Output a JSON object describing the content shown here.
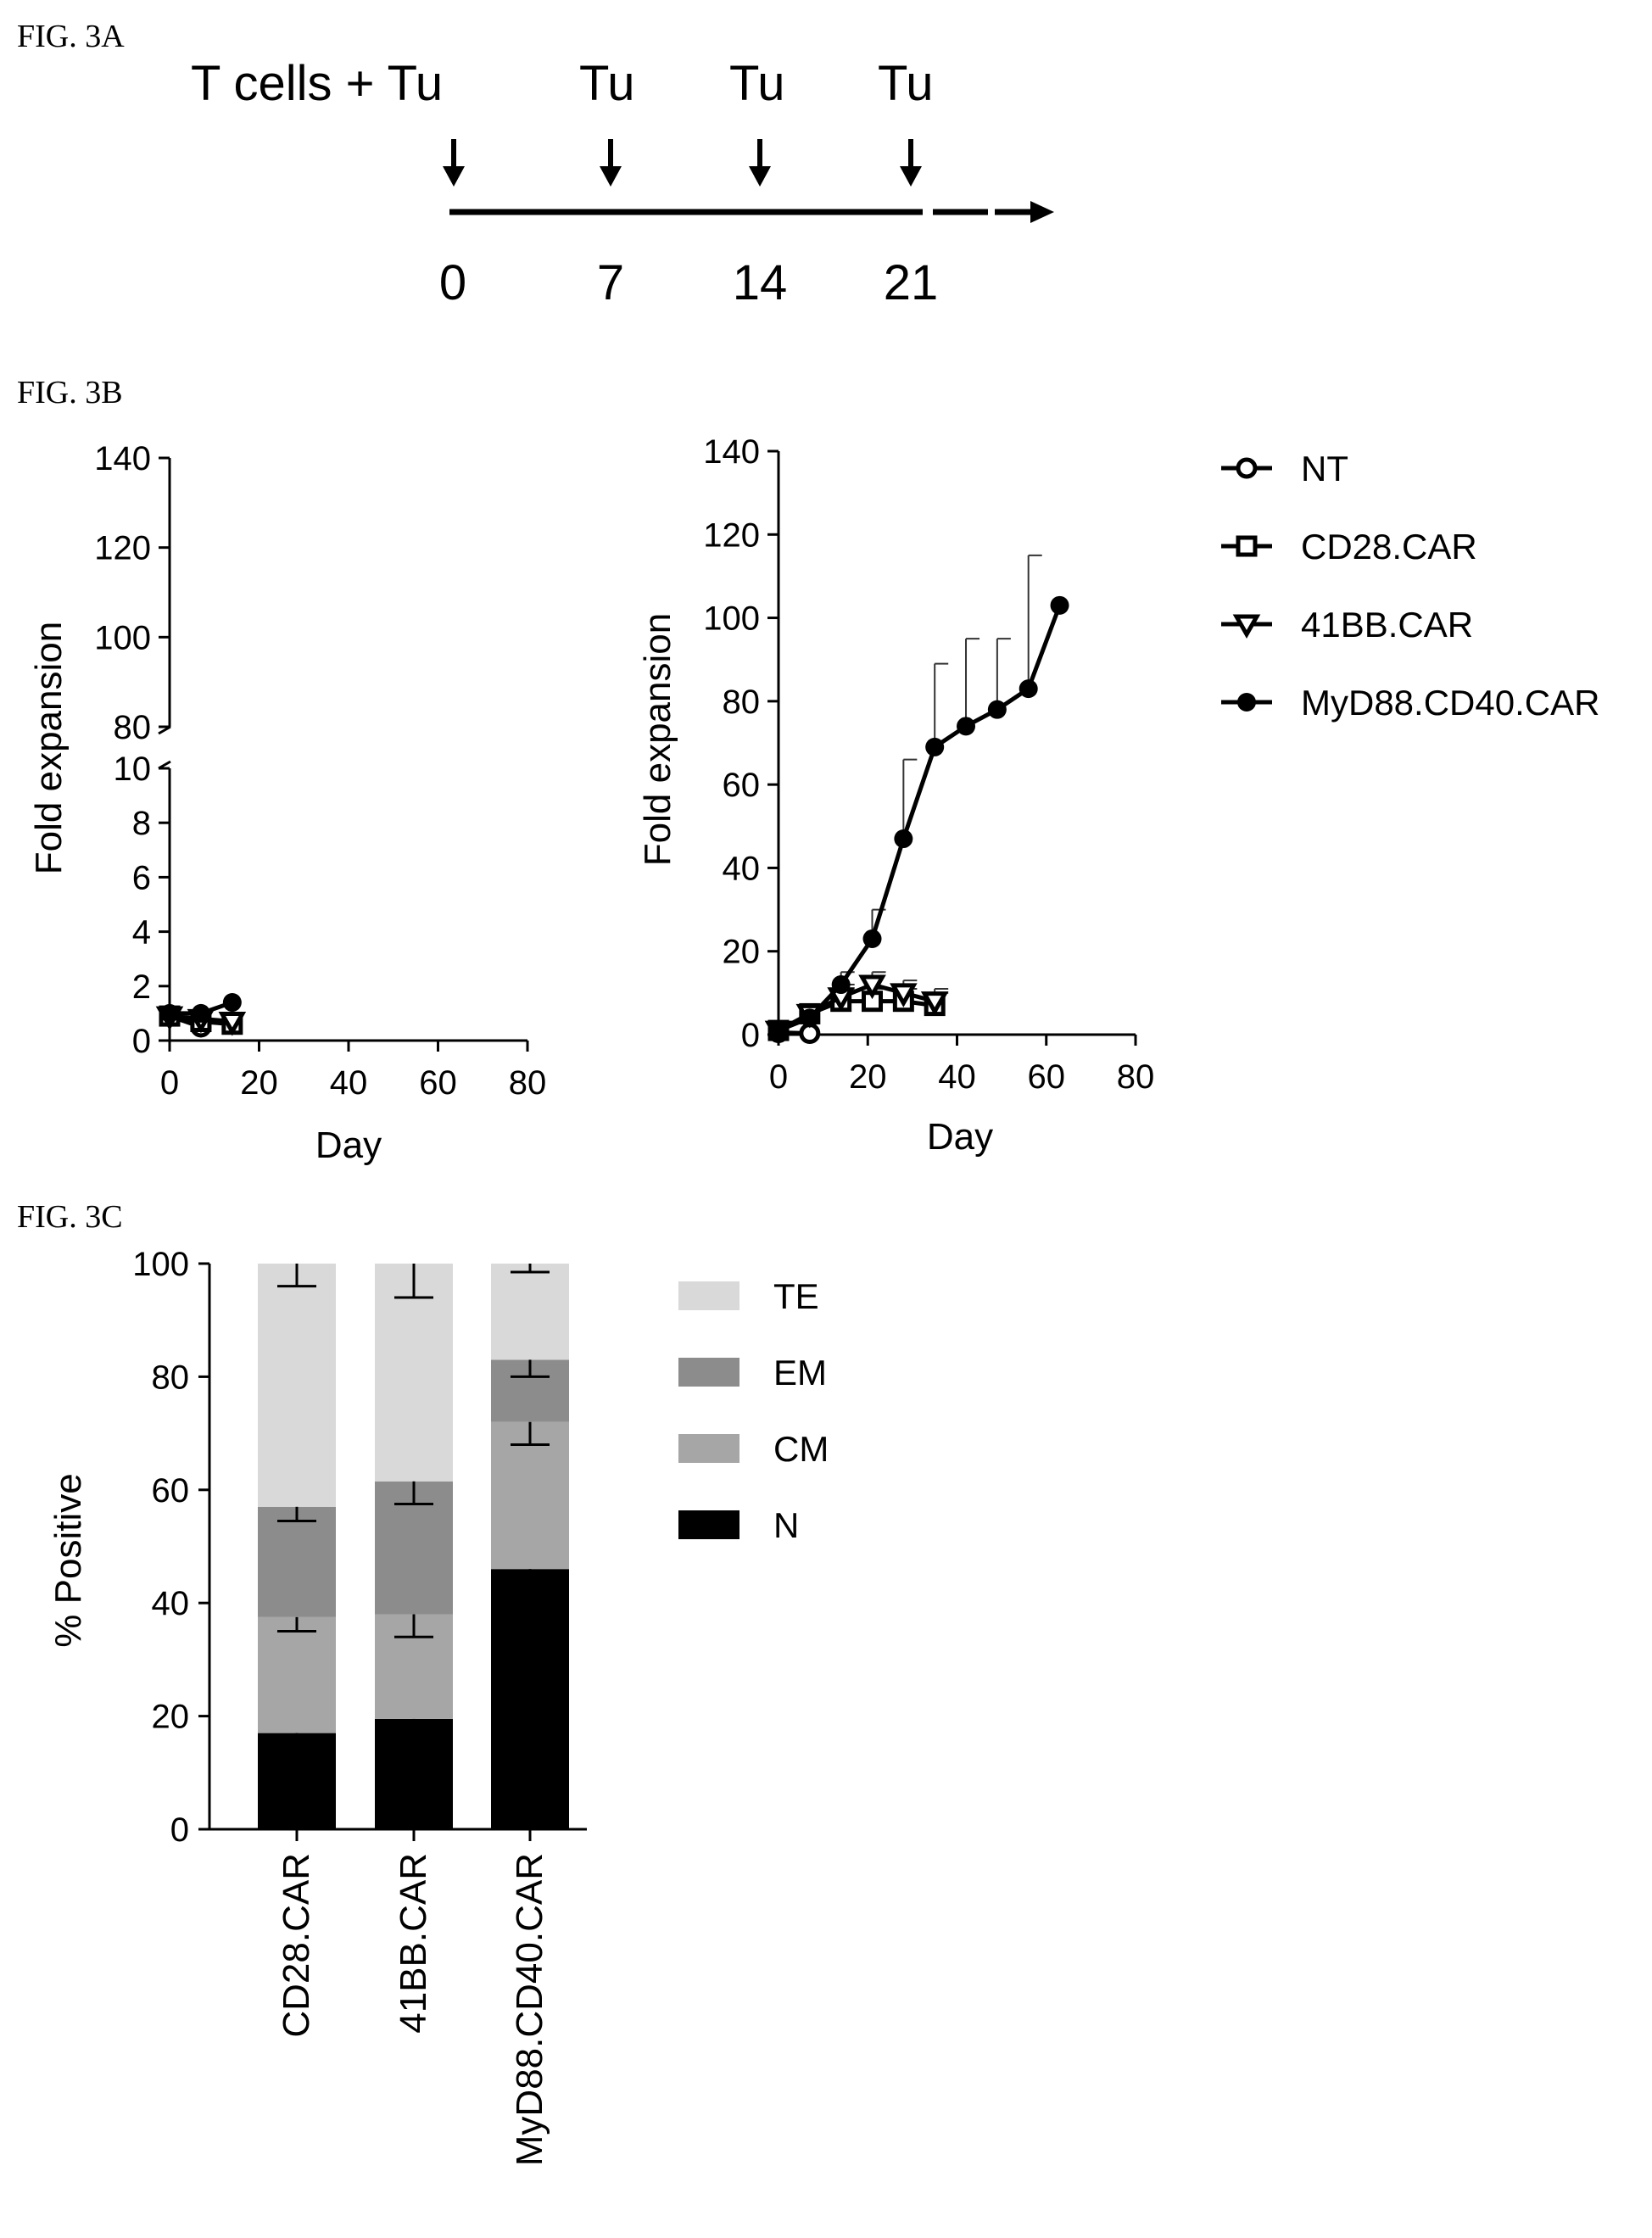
{
  "figures": {
    "a": {
      "label": "FIG. 3A",
      "first_event": "T cells + Tu",
      "event": "Tu",
      "days": [
        "0",
        "7",
        "14",
        "21"
      ]
    },
    "b": {
      "label": "FIG. 3B"
    },
    "c": {
      "label": "FIG. 3C"
    }
  },
  "chart_data": [
    {
      "type": "line",
      "panel": "3B-left",
      "xlabel": "Day",
      "ylabel": "Fold expansion",
      "xlim": [
        0,
        80
      ],
      "xticks": [
        "0",
        "20",
        "40",
        "60",
        "80"
      ],
      "y_broken_axis": {
        "lower_range": [
          0,
          10
        ],
        "lower_ticks": [
          "0",
          "2",
          "4",
          "6",
          "8",
          "10"
        ],
        "upper_range": [
          80,
          140
        ],
        "upper_ticks": [
          "80",
          "100",
          "120",
          "140"
        ]
      },
      "series": [
        {
          "name": "NT",
          "marker": "open-circle",
          "x": [
            0,
            7
          ],
          "y": [
            0.9,
            0.5
          ]
        },
        {
          "name": "CD28.CAR",
          "marker": "open-square",
          "x": [
            0,
            7,
            14
          ],
          "y": [
            0.9,
            0.7,
            0.6
          ]
        },
        {
          "name": "41BB.CAR",
          "marker": "open-triangle-down",
          "x": [
            0,
            7,
            14
          ],
          "y": [
            0.9,
            0.8,
            0.7
          ]
        },
        {
          "name": "MyD88.CD40.CAR",
          "marker": "filled-circle",
          "x": [
            0,
            7,
            14
          ],
          "y": [
            1.0,
            1.0,
            1.4
          ]
        }
      ]
    },
    {
      "type": "line",
      "panel": "3B-right",
      "xlabel": "Day",
      "ylabel": "Fold expansion",
      "xlim": [
        0,
        80
      ],
      "ylim": [
        0,
        140
      ],
      "xticks": [
        "0",
        "20",
        "40",
        "60",
        "80"
      ],
      "yticks": [
        "0",
        "20",
        "40",
        "60",
        "80",
        "100",
        "120",
        "140"
      ],
      "series": [
        {
          "name": "NT",
          "marker": "open-circle",
          "x": [
            0,
            7
          ],
          "y": [
            0.5,
            0.3
          ],
          "err": [
            0,
            0
          ]
        },
        {
          "name": "CD28.CAR",
          "marker": "open-square",
          "x": [
            0,
            7,
            14,
            21,
            28,
            35
          ],
          "y": [
            1,
            5,
            8,
            8,
            8,
            7
          ],
          "err": [
            0,
            0,
            3,
            3,
            3,
            3
          ]
        },
        {
          "name": "41BB.CAR",
          "marker": "open-triangle-down",
          "x": [
            0,
            7,
            14,
            21,
            28,
            35
          ],
          "y": [
            1,
            5,
            9,
            12,
            10,
            8
          ],
          "err": [
            0,
            0,
            3,
            3,
            3,
            3
          ]
        },
        {
          "name": "MyD88.CD40.CAR",
          "marker": "filled-circle",
          "x": [
            0,
            7,
            14,
            21,
            28,
            35,
            42,
            49,
            56,
            63
          ],
          "y": [
            1,
            4,
            12,
            23,
            47,
            69,
            74,
            78,
            83,
            103
          ],
          "err": [
            0,
            0,
            3,
            7,
            19,
            20,
            21,
            17,
            32,
            0
          ]
        }
      ],
      "legend": [
        "NT",
        "CD28.CAR",
        "41BB.CAR",
        "MyD88.CD40.CAR"
      ],
      "legend_position": "right"
    },
    {
      "type": "bar",
      "stacked": true,
      "panel": "3C",
      "ylabel": "% Positive",
      "ylim": [
        0,
        100
      ],
      "yticks": [
        "0",
        "20",
        "40",
        "60",
        "80",
        "100"
      ],
      "categories": [
        "CD28.CAR",
        "41BB.CAR",
        "MyD88.CD40.CAR"
      ],
      "series": [
        {
          "name": "N",
          "values": [
            17,
            19.5,
            46
          ],
          "err": [
            3.5,
            4.5,
            5.5
          ],
          "color": "#000000"
        },
        {
          "name": "CM",
          "values": [
            20.5,
            18.5,
            26
          ],
          "err": [
            2.5,
            4,
            4
          ],
          "color": "#a6a6a6"
        },
        {
          "name": "EM",
          "values": [
            19.5,
            23.5,
            11
          ],
          "err": [
            2.5,
            4,
            3
          ],
          "color": "#8c8c8c"
        },
        {
          "name": "TE",
          "values": [
            43,
            38.5,
            17
          ],
          "err": [
            4,
            6,
            1.5
          ],
          "color": "#d9d9d9"
        }
      ],
      "legend": [
        "TE",
        "EM",
        "CM",
        "N"
      ],
      "legend_position": "right"
    }
  ]
}
